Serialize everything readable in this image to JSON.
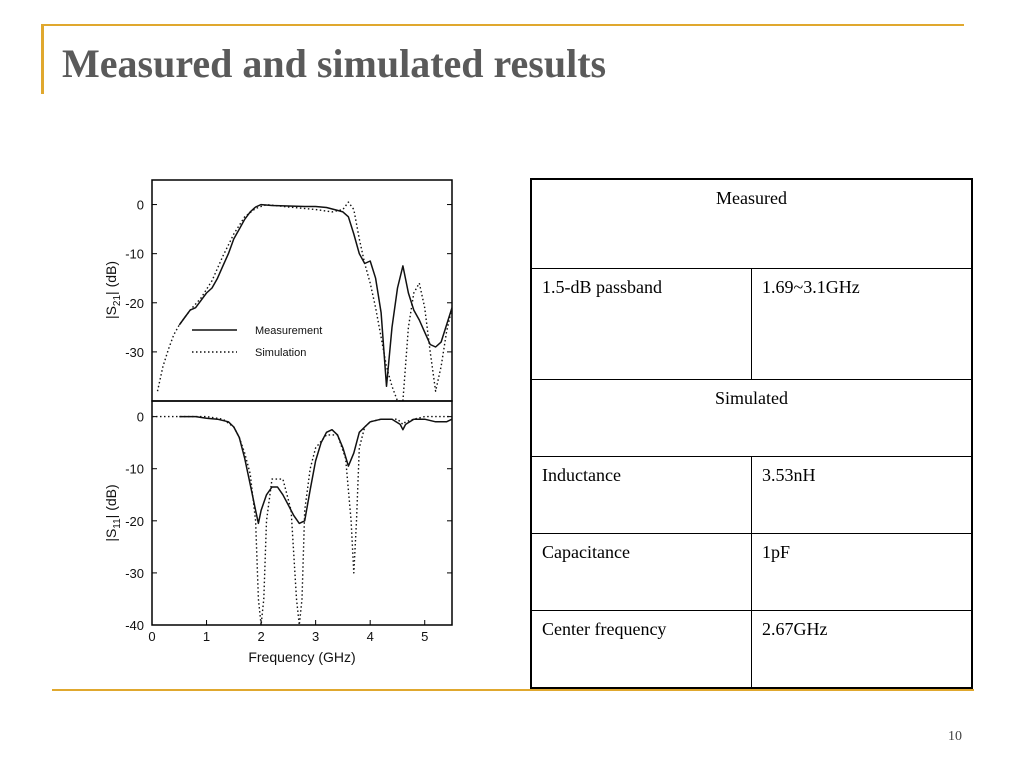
{
  "slide": {
    "title": "Measured and simulated results",
    "page_number": "10",
    "accent_color": "#e0a82e",
    "title_color": "#5a5a5a"
  },
  "chart_data": [
    {
      "type": "line",
      "ylabel_main": "|S",
      "ylabel_sub": "21",
      "ylabel_end": "| (dB)",
      "xlim": [
        0,
        5.5
      ],
      "ylim": [
        -40,
        5
      ],
      "yticks": [
        "0",
        "-10",
        "-20",
        "-30"
      ],
      "yticks_values": [
        0,
        -10,
        -20,
        -30
      ],
      "legend_position": "middle-left",
      "series": [
        {
          "name": "Measurement",
          "style": "solid",
          "x": [
            0.5,
            0.6,
            0.7,
            0.8,
            0.9,
            1.0,
            1.1,
            1.2,
            1.3,
            1.4,
            1.5,
            1.6,
            1.7,
            1.8,
            1.9,
            2.0,
            2.2,
            2.5,
            2.8,
            3.0,
            3.2,
            3.4,
            3.5,
            3.6,
            3.7,
            3.8,
            3.9,
            4.0,
            4.1,
            4.2,
            4.3,
            4.4,
            4.5,
            4.6,
            4.7,
            4.8,
            4.9,
            5.0,
            5.1,
            5.2,
            5.3,
            5.5
          ],
          "y": [
            -24.5,
            -23,
            -21.5,
            -21,
            -19.5,
            -18,
            -17,
            -15,
            -12.5,
            -10,
            -7,
            -5,
            -3,
            -1.5,
            -0.5,
            0,
            -0.2,
            -0.3,
            -0.4,
            -0.4,
            -0.6,
            -1.2,
            -1.5,
            -2.5,
            -6,
            -10,
            -12,
            -11.5,
            -15,
            -22,
            -37,
            -25,
            -17,
            -12.5,
            -18,
            -21.5,
            -23.5,
            -26,
            -28.5,
            -29,
            -28,
            -21
          ]
        },
        {
          "name": "Simulation",
          "style": "dotted",
          "x": [
            0.1,
            0.2,
            0.3,
            0.4,
            0.5,
            0.7,
            0.9,
            1.1,
            1.3,
            1.5,
            1.7,
            1.9,
            2.1,
            2.5,
            3.0,
            3.3,
            3.5,
            3.6,
            3.7,
            3.8,
            3.9,
            4.0,
            4.1,
            4.2,
            4.3,
            4.4,
            4.5,
            4.6,
            4.7,
            4.8,
            4.9,
            5.0,
            5.1,
            5.2,
            5.3,
            5.4,
            5.5
          ],
          "y": [
            -38,
            -33,
            -29.5,
            -26.5,
            -24.5,
            -21.5,
            -19,
            -15.5,
            -10.5,
            -6,
            -2.5,
            -0.8,
            0,
            -0.5,
            -1,
            -1.5,
            -1,
            0.5,
            -1,
            -7,
            -12,
            -16,
            -21,
            -27,
            -33,
            -37,
            -40,
            -40,
            -25,
            -18,
            -16,
            -21,
            -30,
            -38,
            -33,
            -26,
            -21
          ]
        }
      ]
    },
    {
      "type": "line",
      "ylabel_main": "|S",
      "ylabel_sub": "11",
      "ylabel_end": "| (dB)",
      "xlabel": "Frequency (GHz)",
      "xlim": [
        0,
        5.5
      ],
      "ylim": [
        -40,
        3
      ],
      "xticks": [
        "0",
        "1",
        "2",
        "3",
        "4",
        "5"
      ],
      "xticks_values": [
        0,
        1,
        2,
        3,
        4,
        5
      ],
      "yticks": [
        "0",
        "-10",
        "-20",
        "-30",
        "-40"
      ],
      "yticks_values": [
        0,
        -10,
        -20,
        -30,
        -40
      ],
      "series": [
        {
          "name": "Measurement",
          "style": "solid",
          "x": [
            0.5,
            0.8,
            1.0,
            1.2,
            1.4,
            1.5,
            1.6,
            1.7,
            1.8,
            1.9,
            1.95,
            2.0,
            2.1,
            2.2,
            2.3,
            2.4,
            2.5,
            2.6,
            2.7,
            2.8,
            2.9,
            3.0,
            3.1,
            3.2,
            3.3,
            3.4,
            3.5,
            3.6,
            3.7,
            3.8,
            3.9,
            4.0,
            4.2,
            4.4,
            4.55,
            4.6,
            4.65,
            4.8,
            5.0,
            5.2,
            5.4,
            5.5
          ],
          "y": [
            0,
            0,
            -0.3,
            -0.5,
            -1,
            -2,
            -4,
            -8,
            -13,
            -18,
            -20.5,
            -18,
            -15,
            -13.5,
            -13.5,
            -15,
            -17,
            -19,
            -20.5,
            -20,
            -14,
            -8.5,
            -5,
            -3,
            -2.5,
            -3.5,
            -6,
            -9.5,
            -7,
            -3,
            -2,
            -1,
            -0.5,
            -0.5,
            -1.5,
            -2.5,
            -1.5,
            -0.5,
            -0.5,
            -1,
            -1,
            -0.5
          ]
        },
        {
          "name": "Simulation",
          "style": "dotted",
          "x": [
            0.0,
            0.5,
            1.0,
            1.3,
            1.5,
            1.6,
            1.7,
            1.8,
            1.9,
            1.95,
            2.0,
            2.05,
            2.1,
            2.2,
            2.4,
            2.55,
            2.65,
            2.7,
            2.75,
            2.8,
            2.9,
            3.0,
            3.2,
            3.4,
            3.55,
            3.65,
            3.7,
            3.75,
            3.8,
            3.9,
            4.0,
            4.2,
            4.5,
            4.6,
            4.65,
            4.8,
            5.0,
            5.5
          ],
          "y": [
            0,
            0,
            0,
            -0.5,
            -2,
            -4,
            -7,
            -11,
            -20,
            -35,
            -40,
            -35,
            -20,
            -12,
            -12,
            -18,
            -35,
            -40,
            -35,
            -18,
            -10,
            -6,
            -3.5,
            -3.5,
            -8,
            -20,
            -30,
            -20,
            -6,
            -2,
            -1,
            -0.5,
            -0.5,
            -1.5,
            -1,
            -0.5,
            0,
            0
          ]
        }
      ]
    }
  ],
  "table": {
    "measured_header": "Measured",
    "passband_label": "1.5-dB passband",
    "passband_value": "1.69~3.1GHz",
    "simulated_header": "Simulated",
    "inductance_label": "Inductance",
    "inductance_value": "3.53nH",
    "capacitance_label": "Capacitance",
    "capacitance_value": "1pF",
    "center_label": "Center frequency",
    "center_value": "2.67GHz"
  }
}
